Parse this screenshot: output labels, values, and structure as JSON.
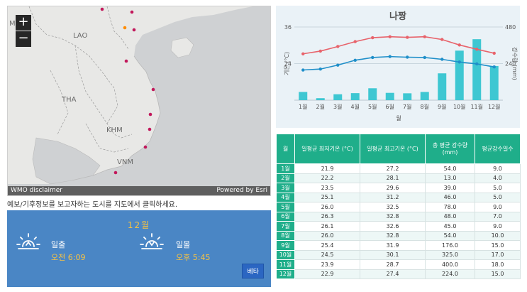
{
  "map": {
    "zoom_in": "+",
    "zoom_out": "−",
    "labels": {
      "mm": "MM",
      "lao": "LAO",
      "tha": "THA",
      "khm": "KHM",
      "vnm": "VNM"
    },
    "footer_left": "WMO disclaimer",
    "footer_right": "Powered by Esri",
    "marker_color": "#c2185b",
    "selected_marker_color": "#ff8c00"
  },
  "hint": "예보/기후정보를 보고자하는 도시를 지도에서 클릭하세요.",
  "sun": {
    "month": "12월",
    "sunrise_label": "일출",
    "sunrise_time": "오전 6:09",
    "sunset_label": "일몰",
    "sunset_time": "오후 5:45",
    "beta": "베타"
  },
  "chart_data": {
    "type": "bar+line",
    "title": "나짱",
    "xlabel": "월",
    "ylabel_left": "기온 (°C)",
    "ylabel_right": "강수량 (mm)",
    "categories": [
      "1월",
      "2월",
      "3월",
      "4월",
      "5월",
      "6월",
      "7월",
      "8월",
      "9월",
      "10월",
      "11월",
      "12월"
    ],
    "y_left_ticks": [
      "36",
      "24"
    ],
    "y_right_ticks": [
      "480",
      "240"
    ],
    "ylim_left": [
      12,
      36
    ],
    "ylim_right": [
      0,
      480
    ],
    "series": [
      {
        "kind": "line",
        "color": "#e8636b",
        "values": [
          27.2,
          28.1,
          29.6,
          31.2,
          32.5,
          32.8,
          32.6,
          32.8,
          31.9,
          30.1,
          28.7,
          27.4
        ]
      },
      {
        "kind": "line",
        "color": "#1f8fc9",
        "values": [
          21.9,
          22.2,
          23.5,
          25.1,
          26.0,
          26.3,
          26.1,
          26.0,
          25.4,
          24.5,
          23.9,
          22.9
        ]
      },
      {
        "kind": "bar",
        "color": "#3ec7d2",
        "values": [
          54.0,
          13.0,
          39.0,
          46.0,
          78.0,
          48.0,
          45.0,
          54.0,
          176.0,
          325.0,
          400.0,
          224.0
        ]
      }
    ]
  },
  "table": {
    "headers": [
      "월",
      "일평균 최저기온 (°C)",
      "일평균 최고기온 (°C)",
      "총 평균 강수량 (mm)",
      "평균강수일수"
    ],
    "rows": [
      [
        "1월",
        "21.9",
        "27.2",
        "54.0",
        "9.0"
      ],
      [
        "2월",
        "22.2",
        "28.1",
        "13.0",
        "4.0"
      ],
      [
        "3월",
        "23.5",
        "29.6",
        "39.0",
        "5.0"
      ],
      [
        "4월",
        "25.1",
        "31.2",
        "46.0",
        "5.0"
      ],
      [
        "5월",
        "26.0",
        "32.5",
        "78.0",
        "9.0"
      ],
      [
        "6월",
        "26.3",
        "32.8",
        "48.0",
        "7.0"
      ],
      [
        "7월",
        "26.1",
        "32.6",
        "45.0",
        "9.0"
      ],
      [
        "8월",
        "26.0",
        "32.8",
        "54.0",
        "10.0"
      ],
      [
        "9월",
        "25.4",
        "31.9",
        "176.0",
        "15.0"
      ],
      [
        "10월",
        "24.5",
        "30.1",
        "325.0",
        "17.0"
      ],
      [
        "11월",
        "23.9",
        "28.7",
        "400.0",
        "18.0"
      ],
      [
        "12월",
        "22.9",
        "27.4",
        "224.0",
        "15.0"
      ]
    ]
  }
}
